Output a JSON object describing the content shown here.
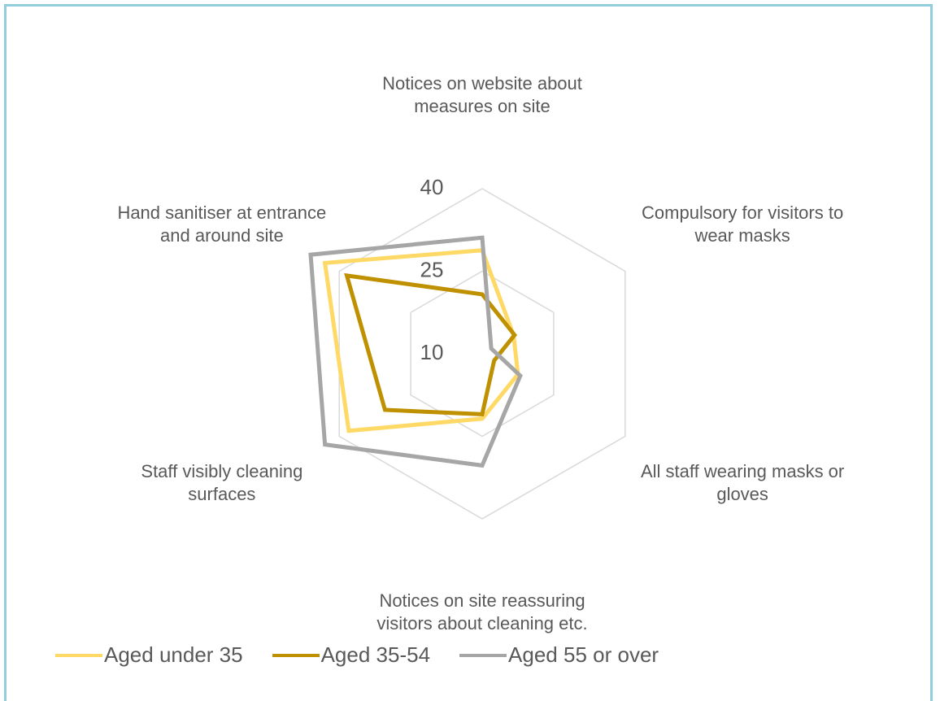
{
  "chart_data": {
    "type": "radar",
    "categories": [
      "Notices on website about measures on site",
      "Compulsory for visitors to wear masks",
      "All staff wearing masks or gloves",
      "Notices on site reassuring visitors about cleaning etc.",
      "Staff visibly cleaning surfaces",
      "Hand sanitiser at entrance and around site"
    ],
    "series": [
      {
        "name": "Aged under 35",
        "color": "#FFD966",
        "values": [
          28.8,
          16.6,
          17.5,
          21.8,
          38,
          43
        ]
      },
      {
        "name": "Aged 35-54",
        "color": "#BF9000",
        "values": [
          20.8,
          16.8,
          12.5,
          21,
          30.4,
          38.4
        ]
      },
      {
        "name": "Aged 55 or over",
        "color": "#A6A6A6",
        "values": [
          31.1,
          11.9,
          18,
          30.3,
          43,
          46
        ]
      }
    ],
    "ylim": [
      10,
      40
    ],
    "yticks": [
      10,
      25,
      40
    ],
    "grid": true,
    "legend": "bottom"
  }
}
